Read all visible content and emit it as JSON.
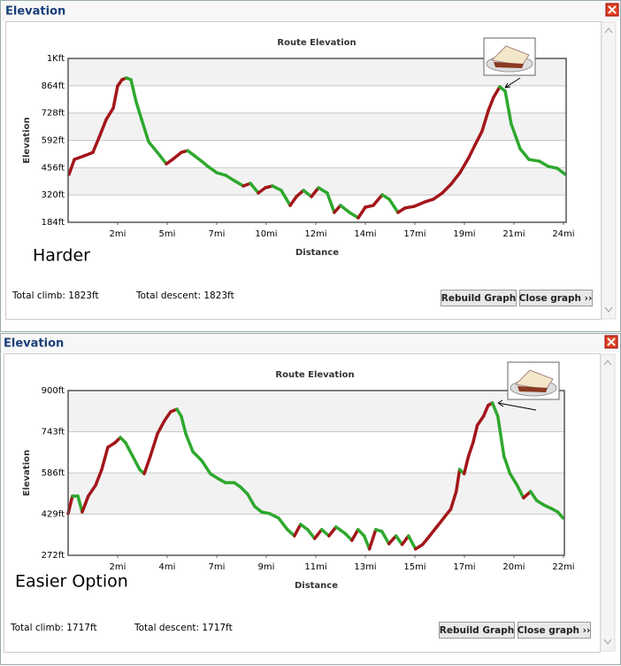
{
  "windows": [
    {
      "title": "Elevation",
      "note": "Harder",
      "total_climb": "Total climb: 1823ft",
      "total_descent": "Total descent: 1823ft",
      "buttons": [
        "Rebuild Graph",
        "Close graph ››"
      ]
    },
    {
      "title": "Elevation",
      "note": "Easier Option",
      "total_climb": "Total climb: 1717ft",
      "total_descent": "Total descent: 1717ft",
      "buttons": [
        "Rebuild Graph",
        "Close graph ››"
      ]
    }
  ],
  "chart_data": [
    {
      "type": "line",
      "title": "Route Elevation",
      "x_label": "Distance",
      "y_label": "Elevation",
      "up_color": "#a3161a",
      "down_color": "#2ea82e",
      "grid": true,
      "xlim": [
        0,
        23.93
      ],
      "xticks": [
        {
          "value": 2.38,
          "label": "2mi"
        },
        {
          "value": 4.76,
          "label": "5mi"
        },
        {
          "value": 7.14,
          "label": "7mi"
        },
        {
          "value": 9.52,
          "label": "10mi"
        },
        {
          "value": 11.9,
          "label": "12mi"
        },
        {
          "value": 14.28,
          "label": "14mi"
        },
        {
          "value": 16.66,
          "label": "17mi"
        },
        {
          "value": 19.04,
          "label": "19mi"
        },
        {
          "value": 21.42,
          "label": "21mi"
        },
        {
          "value": 23.8,
          "label": "24mi"
        }
      ],
      "ylim": [
        184,
        1000
      ],
      "yticks": [
        {
          "value": 184,
          "label": "184ft"
        },
        {
          "value": 320,
          "label": "320ft"
        },
        {
          "value": 456,
          "label": "456ft"
        },
        {
          "value": 592,
          "label": "592ft"
        },
        {
          "value": 728,
          "label": "728ft"
        },
        {
          "value": 864,
          "label": "864ft"
        },
        {
          "value": 1000,
          "label": "1Kft"
        }
      ],
      "x": [
        0.04,
        0.3,
        0.77,
        1.19,
        1.49,
        1.83,
        2.17,
        2.38,
        2.59,
        2.8,
        3.02,
        3.27,
        3.53,
        3.87,
        4.29,
        4.72,
        5.02,
        5.44,
        5.74,
        6.08,
        6.42,
        6.72,
        7.14,
        7.57,
        7.99,
        8.42,
        8.76,
        9.14,
        9.48,
        9.82,
        10.24,
        10.67,
        10.97,
        11.31,
        11.69,
        12.03,
        12.45,
        12.79,
        13.09,
        13.52,
        13.94,
        14.28,
        14.66,
        15.09,
        15.43,
        15.85,
        16.19,
        16.62,
        17.13,
        17.55,
        17.98,
        18.4,
        18.83,
        19.25,
        19.59,
        19.89,
        20.19,
        20.44,
        20.74,
        21.0,
        21.29,
        21.72,
        22.14,
        22.65,
        23.08,
        23.5,
        23.89
      ],
      "values": [
        422,
        497,
        515,
        532,
        607,
        696,
        753,
        863,
        894,
        903,
        894,
        784,
        696,
        585,
        532,
        475,
        497,
        532,
        541,
        515,
        488,
        462,
        431,
        418,
        391,
        365,
        378,
        330,
        356,
        365,
        343,
        268,
        312,
        343,
        312,
        356,
        330,
        233,
        268,
        233,
        206,
        259,
        268,
        321,
        299,
        233,
        255,
        263,
        285,
        299,
        330,
        374,
        431,
        506,
        577,
        638,
        740,
        806,
        859,
        837,
        674,
        550,
        497,
        488,
        462,
        453,
        422
      ]
    },
    {
      "type": "line",
      "title": "Route Elevation",
      "x_label": "Distance",
      "y_label": "Elevation",
      "up_color": "#a3161a",
      "down_color": "#2ea82e",
      "grid": true,
      "xlim": [
        0,
        21.84
      ],
      "xticks": [
        {
          "value": 2.18,
          "label": "2mi"
        },
        {
          "value": 4.36,
          "label": "4mi"
        },
        {
          "value": 6.54,
          "label": "7mi"
        },
        {
          "value": 8.72,
          "label": "9mi"
        },
        {
          "value": 10.9,
          "label": "11mi"
        },
        {
          "value": 13.08,
          "label": "13mi"
        },
        {
          "value": 15.26,
          "label": "15mi"
        },
        {
          "value": 17.44,
          "label": "17mi"
        },
        {
          "value": 19.62,
          "label": "20mi"
        },
        {
          "value": 21.8,
          "label": "22mi"
        }
      ],
      "ylim": [
        272,
        900
      ],
      "yticks": [
        {
          "value": 272,
          "label": "272ft"
        },
        {
          "value": 429,
          "label": "429ft"
        },
        {
          "value": 586,
          "label": "586ft"
        },
        {
          "value": 743,
          "label": "743ft"
        },
        {
          "value": 900,
          "label": "900ft"
        }
      ],
      "x": [
        0,
        0.19,
        0.43,
        0.62,
        0.89,
        1.21,
        1.48,
        1.75,
        2.06,
        2.3,
        2.53,
        2.84,
        3.15,
        3.35,
        3.62,
        3.93,
        4.24,
        4.51,
        4.79,
        4.98,
        5.18,
        5.49,
        5.88,
        6.26,
        6.57,
        6.92,
        7.31,
        7.59,
        7.9,
        8.21,
        8.52,
        8.87,
        9.26,
        9.65,
        9.96,
        10.23,
        10.54,
        10.85,
        11.16,
        11.48,
        11.79,
        12.18,
        12.49,
        12.76,
        13.03,
        13.26,
        13.54,
        13.81,
        14.12,
        14.43,
        14.7,
        14.98,
        15.29,
        15.6,
        15.91,
        16.22,
        16.53,
        16.84,
        17.08,
        17.23,
        17.43,
        17.62,
        17.82,
        18.01,
        18.28,
        18.48,
        18.67,
        18.91,
        19.18,
        19.45,
        19.76,
        20.04,
        20.35,
        20.62,
        20.93,
        21.32,
        21.55,
        21.78
      ],
      "values": [
        431,
        498,
        498,
        437,
        498,
        539,
        599,
        684,
        701,
        721,
        701,
        650,
        599,
        583,
        650,
        735,
        785,
        819,
        829,
        802,
        735,
        667,
        633,
        583,
        566,
        549,
        549,
        532,
        505,
        458,
        437,
        431,
        414,
        370,
        346,
        390,
        370,
        336,
        370,
        346,
        380,
        356,
        329,
        370,
        346,
        296,
        370,
        363,
        316,
        346,
        313,
        346,
        296,
        313,
        346,
        380,
        414,
        448,
        515,
        599,
        583,
        650,
        701,
        768,
        802,
        843,
        853,
        802,
        650,
        583,
        539,
        491,
        515,
        481,
        464,
        448,
        437,
        414
      ]
    }
  ]
}
